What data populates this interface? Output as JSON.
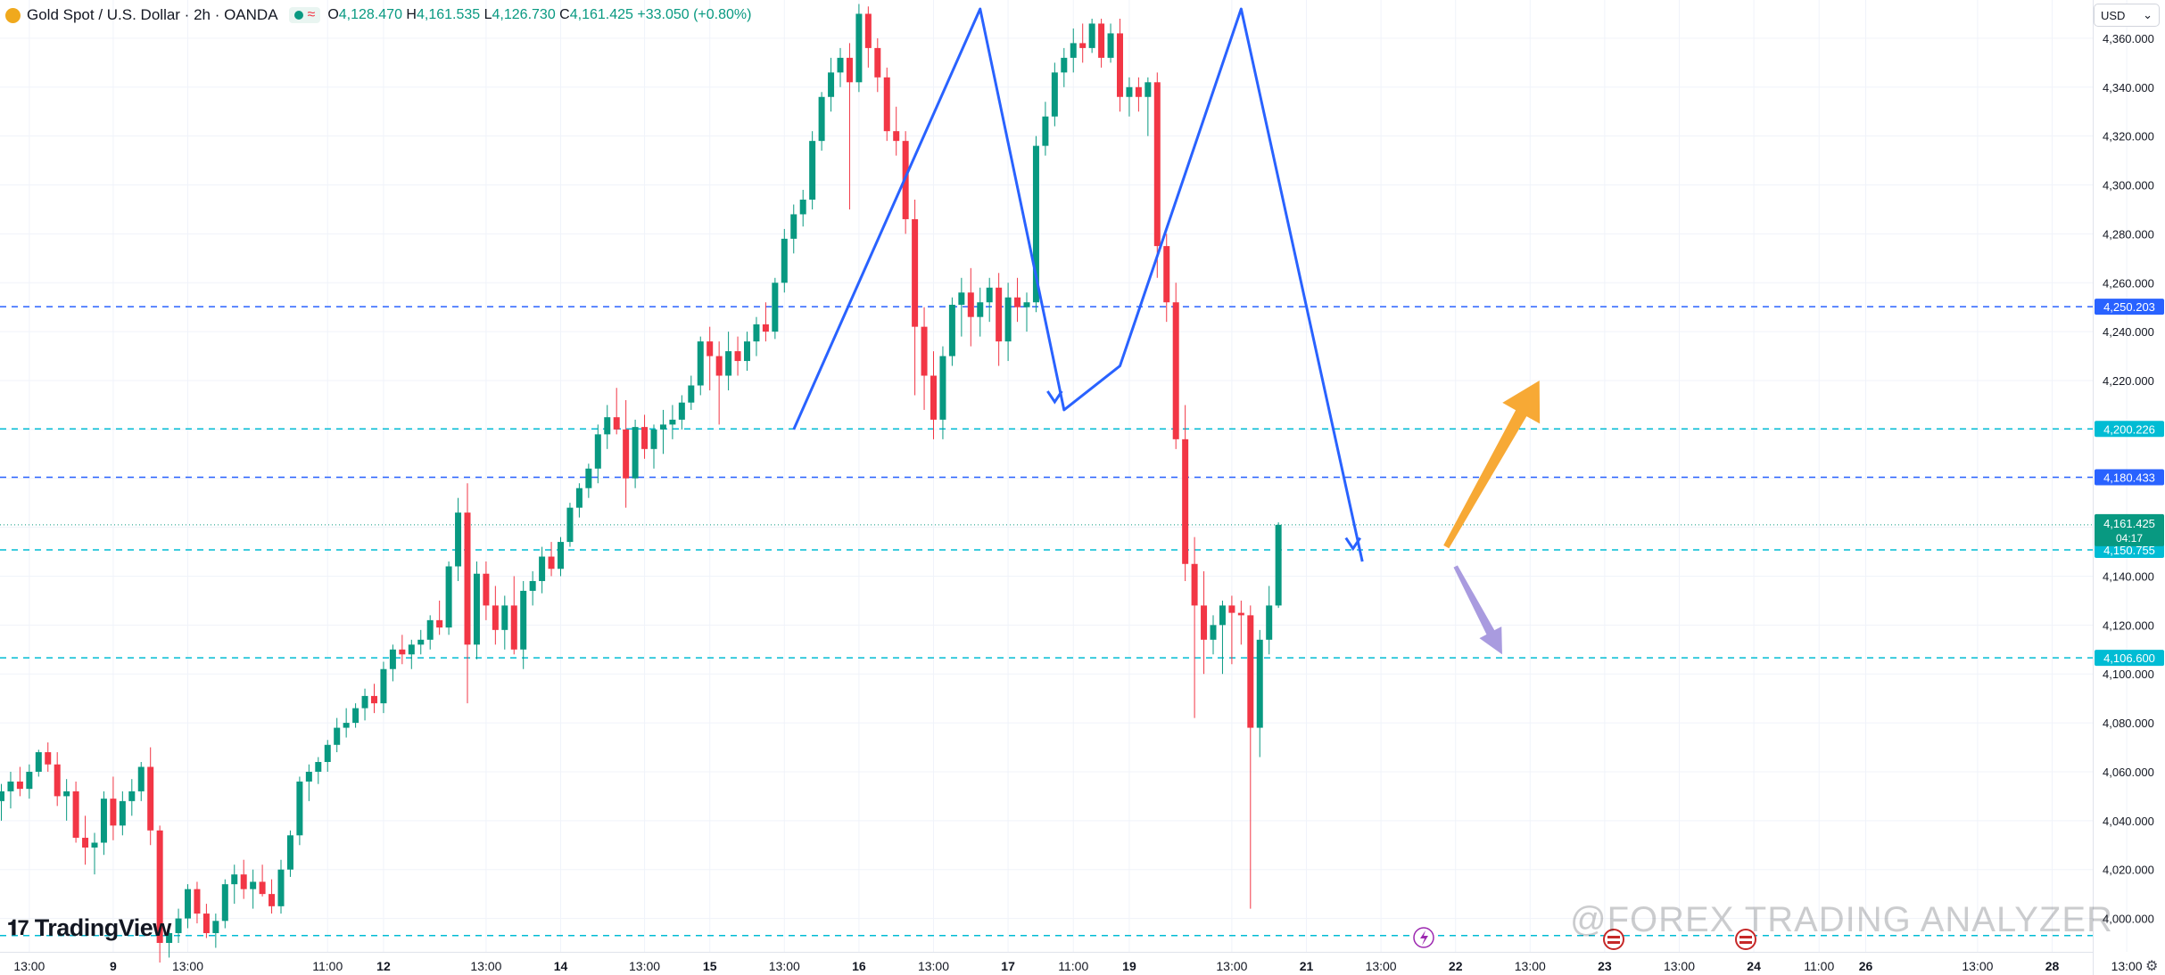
{
  "legend": {
    "symbol_title": "Gold Spot / U.S. Dollar · 2h · OANDA",
    "open_label": "O",
    "open": "4,128.470",
    "high_label": "H",
    "high": "4,161.535",
    "low_label": "L",
    "low": "4,126.730",
    "close_label": "C",
    "close": "4,161.425",
    "change": "+33.050 (+0.80%)",
    "symbol_icon": "gold-coin-icon",
    "status_icon": "market-open-dot-icon",
    "wave_icon": "approx-wave-icon"
  },
  "currency_selector": {
    "label": "USD",
    "icon": "chevron-down-icon"
  },
  "brand": {
    "name": "TradingView",
    "icon": "tradingview-logo-icon"
  },
  "watermark": "@FOREX TRADING ANALYZER",
  "colors": {
    "up": "#089981",
    "down": "#f23645",
    "pattern_line": "#2962ff",
    "arrow_up": "#f7a935",
    "arrow_down": "#a99bdf",
    "level_blue": "#2962ff",
    "level_cyan": "#00bcd4"
  },
  "chart_data": {
    "type": "candlestick",
    "symbol": "XAUUSD",
    "interval": "2h",
    "ylim": [
      3990,
      4372
    ],
    "y_ticks": [
      "4,360.000",
      "4,340.000",
      "4,320.000",
      "4,300.000",
      "4,280.000",
      "4,260.000",
      "4,240.000",
      "4,220.000",
      "4,200.000",
      "4,180.000",
      "4,160.000",
      "4,140.000",
      "4,120.000",
      "4,100.000",
      "4,080.000",
      "4,060.000",
      "4,040.000",
      "4,020.000",
      "4,000.000"
    ],
    "y_tick_values": [
      4360,
      4340,
      4320,
      4300,
      4280,
      4260,
      4240,
      4220,
      4200,
      4180,
      4160,
      4140,
      4120,
      4100,
      4080,
      4060,
      4040,
      4020,
      4000
    ],
    "x_ticks": [
      "13:00",
      "9",
      "13:00",
      "11:00",
      "12",
      "13:00",
      "14",
      "13:00",
      "15",
      "13:00",
      "16",
      "13:00",
      "17",
      "11:00",
      "19",
      "13:00",
      "21",
      "13:00",
      "22",
      "13:00",
      "23",
      "13:00",
      "24",
      "11:00",
      "26",
      "13:00",
      "28",
      "13:00"
    ],
    "x_tick_bar_index": [
      3,
      12,
      20,
      35,
      41,
      52,
      60,
      69,
      76,
      84,
      92,
      100,
      108,
      115,
      121,
      132,
      140,
      148,
      156,
      164,
      172,
      180,
      188,
      195,
      200,
      212,
      220,
      228
    ],
    "candles": [
      {
        "o": 4048,
        "h": 4055,
        "l": 4040,
        "c": 4052
      },
      {
        "o": 4052,
        "h": 4060,
        "l": 4045,
        "c": 4056
      },
      {
        "o": 4056,
        "h": 4062,
        "l": 4050,
        "c": 4053
      },
      {
        "o": 4053,
        "h": 4063,
        "l": 4049,
        "c": 4060
      },
      {
        "o": 4060,
        "h": 4069,
        "l": 4058,
        "c": 4068
      },
      {
        "o": 4068,
        "h": 4072,
        "l": 4060,
        "c": 4063
      },
      {
        "o": 4063,
        "h": 4068,
        "l": 4046,
        "c": 4050
      },
      {
        "o": 4050,
        "h": 4057,
        "l": 4040,
        "c": 4052
      },
      {
        "o": 4052,
        "h": 4056,
        "l": 4031,
        "c": 4033
      },
      {
        "o": 4033,
        "h": 4042,
        "l": 4022,
        "c": 4029
      },
      {
        "o": 4029,
        "h": 4035,
        "l": 4018,
        "c": 4031
      },
      {
        "o": 4031,
        "h": 4052,
        "l": 4026,
        "c": 4049
      },
      {
        "o": 4049,
        "h": 4058,
        "l": 4032,
        "c": 4038
      },
      {
        "o": 4038,
        "h": 4052,
        "l": 4034,
        "c": 4048
      },
      {
        "o": 4048,
        "h": 4057,
        "l": 4042,
        "c": 4052
      },
      {
        "o": 4052,
        "h": 4064,
        "l": 4048,
        "c": 4062
      },
      {
        "o": 4062,
        "h": 4070,
        "l": 4030,
        "c": 4036
      },
      {
        "o": 4036,
        "h": 4038,
        "l": 3982,
        "c": 3990
      },
      {
        "o": 3990,
        "h": 3998,
        "l": 3984,
        "c": 3994
      },
      {
        "o": 3994,
        "h": 4004,
        "l": 3990,
        "c": 4000
      },
      {
        "o": 4000,
        "h": 4014,
        "l": 3996,
        "c": 4012
      },
      {
        "o": 4012,
        "h": 4015,
        "l": 3998,
        "c": 4002
      },
      {
        "o": 4002,
        "h": 4006,
        "l": 3992,
        "c": 3994
      },
      {
        "o": 3994,
        "h": 4002,
        "l": 3988,
        "c": 3999
      },
      {
        "o": 3999,
        "h": 4016,
        "l": 3996,
        "c": 4014
      },
      {
        "o": 4014,
        "h": 4022,
        "l": 4006,
        "c": 4018
      },
      {
        "o": 4018,
        "h": 4024,
        "l": 4008,
        "c": 4012
      },
      {
        "o": 4012,
        "h": 4020,
        "l": 4004,
        "c": 4015
      },
      {
        "o": 4015,
        "h": 4022,
        "l": 4009,
        "c": 4010
      },
      {
        "o": 4010,
        "h": 4016,
        "l": 4002,
        "c": 4005
      },
      {
        "o": 4005,
        "h": 4024,
        "l": 4002,
        "c": 4020
      },
      {
        "o": 4020,
        "h": 4036,
        "l": 4017,
        "c": 4034
      },
      {
        "o": 4034,
        "h": 4058,
        "l": 4030,
        "c": 4056
      },
      {
        "o": 4056,
        "h": 4063,
        "l": 4048,
        "c": 4060
      },
      {
        "o": 4060,
        "h": 4066,
        "l": 4055,
        "c": 4064
      },
      {
        "o": 4064,
        "h": 4073,
        "l": 4060,
        "c": 4071
      },
      {
        "o": 4071,
        "h": 4082,
        "l": 4068,
        "c": 4078
      },
      {
        "o": 4078,
        "h": 4086,
        "l": 4074,
        "c": 4080
      },
      {
        "o": 4080,
        "h": 4088,
        "l": 4078,
        "c": 4086
      },
      {
        "o": 4086,
        "h": 4094,
        "l": 4081,
        "c": 4091
      },
      {
        "o": 4091,
        "h": 4096,
        "l": 4084,
        "c": 4088
      },
      {
        "o": 4088,
        "h": 4105,
        "l": 4084,
        "c": 4102
      },
      {
        "o": 4102,
        "h": 4112,
        "l": 4097,
        "c": 4110
      },
      {
        "o": 4110,
        "h": 4116,
        "l": 4104,
        "c": 4108
      },
      {
        "o": 4108,
        "h": 4114,
        "l": 4102,
        "c": 4112
      },
      {
        "o": 4112,
        "h": 4118,
        "l": 4108,
        "c": 4114
      },
      {
        "o": 4114,
        "h": 4124,
        "l": 4110,
        "c": 4122
      },
      {
        "o": 4122,
        "h": 4130,
        "l": 4116,
        "c": 4119
      },
      {
        "o": 4119,
        "h": 4146,
        "l": 4116,
        "c": 4144
      },
      {
        "o": 4144,
        "h": 4172,
        "l": 4138,
        "c": 4166
      },
      {
        "o": 4166,
        "h": 4178,
        "l": 4088,
        "c": 4112
      },
      {
        "o": 4112,
        "h": 4146,
        "l": 4106,
        "c": 4141
      },
      {
        "o": 4141,
        "h": 4146,
        "l": 4122,
        "c": 4128
      },
      {
        "o": 4128,
        "h": 4136,
        "l": 4112,
        "c": 4118
      },
      {
        "o": 4118,
        "h": 4132,
        "l": 4110,
        "c": 4128
      },
      {
        "o": 4128,
        "h": 4140,
        "l": 4108,
        "c": 4110
      },
      {
        "o": 4110,
        "h": 4138,
        "l": 4102,
        "c": 4134
      },
      {
        "o": 4134,
        "h": 4142,
        "l": 4128,
        "c": 4138
      },
      {
        "o": 4138,
        "h": 4152,
        "l": 4133,
        "c": 4148
      },
      {
        "o": 4148,
        "h": 4154,
        "l": 4140,
        "c": 4143
      },
      {
        "o": 4143,
        "h": 4156,
        "l": 4140,
        "c": 4154
      },
      {
        "o": 4154,
        "h": 4170,
        "l": 4152,
        "c": 4168
      },
      {
        "o": 4168,
        "h": 4178,
        "l": 4164,
        "c": 4176
      },
      {
        "o": 4176,
        "h": 4186,
        "l": 4172,
        "c": 4184
      },
      {
        "o": 4184,
        "h": 4202,
        "l": 4178,
        "c": 4198
      },
      {
        "o": 4198,
        "h": 4210,
        "l": 4192,
        "c": 4205
      },
      {
        "o": 4205,
        "h": 4217,
        "l": 4198,
        "c": 4200
      },
      {
        "o": 4200,
        "h": 4212,
        "l": 4168,
        "c": 4180
      },
      {
        "o": 4180,
        "h": 4204,
        "l": 4176,
        "c": 4201
      },
      {
        "o": 4201,
        "h": 4206,
        "l": 4188,
        "c": 4192
      },
      {
        "o": 4192,
        "h": 4202,
        "l": 4184,
        "c": 4200
      },
      {
        "o": 4200,
        "h": 4208,
        "l": 4190,
        "c": 4202
      },
      {
        "o": 4202,
        "h": 4210,
        "l": 4196,
        "c": 4204
      },
      {
        "o": 4204,
        "h": 4214,
        "l": 4200,
        "c": 4211
      },
      {
        "o": 4211,
        "h": 4222,
        "l": 4208,
        "c": 4218
      },
      {
        "o": 4218,
        "h": 4238,
        "l": 4214,
        "c": 4236
      },
      {
        "o": 4236,
        "h": 4242,
        "l": 4216,
        "c": 4230
      },
      {
        "o": 4230,
        "h": 4236,
        "l": 4202,
        "c": 4222
      },
      {
        "o": 4222,
        "h": 4240,
        "l": 4216,
        "c": 4232
      },
      {
        "o": 4232,
        "h": 4238,
        "l": 4222,
        "c": 4228
      },
      {
        "o": 4228,
        "h": 4240,
        "l": 4224,
        "c": 4236
      },
      {
        "o": 4236,
        "h": 4246,
        "l": 4230,
        "c": 4243
      },
      {
        "o": 4243,
        "h": 4252,
        "l": 4236,
        "c": 4240
      },
      {
        "o": 4240,
        "h": 4262,
        "l": 4237,
        "c": 4260
      },
      {
        "o": 4260,
        "h": 4282,
        "l": 4256,
        "c": 4278
      },
      {
        "o": 4278,
        "h": 4292,
        "l": 4272,
        "c": 4288
      },
      {
        "o": 4288,
        "h": 4298,
        "l": 4283,
        "c": 4294
      },
      {
        "o": 4294,
        "h": 4322,
        "l": 4290,
        "c": 4318
      },
      {
        "o": 4318,
        "h": 4338,
        "l": 4314,
        "c": 4336
      },
      {
        "o": 4336,
        "h": 4352,
        "l": 4330,
        "c": 4346
      },
      {
        "o": 4346,
        "h": 4356,
        "l": 4340,
        "c": 4352
      },
      {
        "o": 4352,
        "h": 4358,
        "l": 4290,
        "c": 4342
      },
      {
        "o": 4342,
        "h": 4374,
        "l": 4338,
        "c": 4370
      },
      {
        "o": 4370,
        "h": 4373,
        "l": 4348,
        "c": 4356
      },
      {
        "o": 4356,
        "h": 4360,
        "l": 4338,
        "c": 4344
      },
      {
        "o": 4344,
        "h": 4348,
        "l": 4318,
        "c": 4322
      },
      {
        "o": 4322,
        "h": 4332,
        "l": 4312,
        "c": 4318
      },
      {
        "o": 4318,
        "h": 4322,
        "l": 4280,
        "c": 4286
      },
      {
        "o": 4286,
        "h": 4294,
        "l": 4214,
        "c": 4242
      },
      {
        "o": 4242,
        "h": 4250,
        "l": 4208,
        "c": 4222
      },
      {
        "o": 4222,
        "h": 4232,
        "l": 4196,
        "c": 4204
      },
      {
        "o": 4204,
        "h": 4234,
        "l": 4196,
        "c": 4230
      },
      {
        "o": 4230,
        "h": 4254,
        "l": 4226,
        "c": 4251
      },
      {
        "o": 4251,
        "h": 4262,
        "l": 4238,
        "c": 4256
      },
      {
        "o": 4256,
        "h": 4266,
        "l": 4234,
        "c": 4246
      },
      {
        "o": 4246,
        "h": 4258,
        "l": 4238,
        "c": 4252
      },
      {
        "o": 4252,
        "h": 4262,
        "l": 4244,
        "c": 4258
      },
      {
        "o": 4258,
        "h": 4264,
        "l": 4226,
        "c": 4236
      },
      {
        "o": 4236,
        "h": 4260,
        "l": 4228,
        "c": 4254
      },
      {
        "o": 4254,
        "h": 4262,
        "l": 4244,
        "c": 4250
      },
      {
        "o": 4250,
        "h": 4256,
        "l": 4240,
        "c": 4252
      },
      {
        "o": 4252,
        "h": 4320,
        "l": 4248,
        "c": 4316
      },
      {
        "o": 4316,
        "h": 4334,
        "l": 4312,
        "c": 4328
      },
      {
        "o": 4328,
        "h": 4350,
        "l": 4324,
        "c": 4346
      },
      {
        "o": 4346,
        "h": 4356,
        "l": 4340,
        "c": 4352
      },
      {
        "o": 4352,
        "h": 4364,
        "l": 4346,
        "c": 4358
      },
      {
        "o": 4358,
        "h": 4366,
        "l": 4350,
        "c": 4356
      },
      {
        "o": 4356,
        "h": 4368,
        "l": 4354,
        "c": 4366
      },
      {
        "o": 4366,
        "h": 4368,
        "l": 4348,
        "c": 4352
      },
      {
        "o": 4352,
        "h": 4366,
        "l": 4350,
        "c": 4362
      },
      {
        "o": 4362,
        "h": 4368,
        "l": 4330,
        "c": 4336
      },
      {
        "o": 4336,
        "h": 4344,
        "l": 4328,
        "c": 4340
      },
      {
        "o": 4340,
        "h": 4344,
        "l": 4330,
        "c": 4336
      },
      {
        "o": 4336,
        "h": 4344,
        "l": 4320,
        "c": 4342
      },
      {
        "o": 4342,
        "h": 4346,
        "l": 4262,
        "c": 4275
      },
      {
        "o": 4275,
        "h": 4280,
        "l": 4244,
        "c": 4252
      },
      {
        "o": 4252,
        "h": 4260,
        "l": 4192,
        "c": 4196
      },
      {
        "o": 4196,
        "h": 4210,
        "l": 4138,
        "c": 4145
      },
      {
        "o": 4145,
        "h": 4156,
        "l": 4082,
        "c": 4128
      },
      {
        "o": 4128,
        "h": 4142,
        "l": 4100,
        "c": 4114
      },
      {
        "o": 4114,
        "h": 4124,
        "l": 4108,
        "c": 4120
      },
      {
        "o": 4120,
        "h": 4130,
        "l": 4100,
        "c": 4128
      },
      {
        "o": 4128,
        "h": 4132,
        "l": 4104,
        "c": 4125
      },
      {
        "o": 4125,
        "h": 4130,
        "l": 4112,
        "c": 4124
      },
      {
        "o": 4124,
        "h": 4128,
        "l": 4004,
        "c": 4078
      },
      {
        "o": 4078,
        "h": 4118,
        "l": 4066,
        "c": 4114
      },
      {
        "o": 4114,
        "h": 4136,
        "l": 4108,
        "c": 4128
      },
      {
        "o": 4128,
        "h": 4162,
        "l": 4127,
        "c": 4161
      }
    ],
    "levels": [
      {
        "price": 4250.203,
        "label": "4,250.203",
        "style": "blue"
      },
      {
        "price": 4200.226,
        "label": "4,200.226",
        "style": "cyan"
      },
      {
        "price": 4180.433,
        "label": "4,180.433",
        "style": "blue"
      },
      {
        "price": 4150.755,
        "label": "4,150.755",
        "style": "cyan"
      },
      {
        "price": 4106.6,
        "label": "4,106.600",
        "style": "cyan"
      },
      {
        "price": 3993,
        "label": "",
        "style": "cyan"
      }
    ],
    "last_price": {
      "label": "4,161.425",
      "countdown": "04:17"
    },
    "pattern": [
      {
        "bar": 85,
        "price": 4200
      },
      {
        "bar": 105,
        "price": 4372
      },
      {
        "bar": 114,
        "price": 4208
      },
      {
        "bar": 120,
        "price": 4226
      },
      {
        "bar": 133,
        "price": 4372
      },
      {
        "bar": 146,
        "price": 4146
      }
    ],
    "pattern_ticks": [
      {
        "bar": 113,
        "price": 4212,
        "dir": "right"
      },
      {
        "bar": 145,
        "price": 4152,
        "dir": "right"
      }
    ],
    "projection_arrows": [
      {
        "from_bar": 155,
        "from_price": 4152,
        "to_bar": 165,
        "to_price": 4220,
        "color": "#f7a935"
      },
      {
        "from_bar": 156,
        "from_price": 4144,
        "to_bar": 161,
        "to_price": 4108,
        "color": "#a99bdf"
      }
    ]
  }
}
